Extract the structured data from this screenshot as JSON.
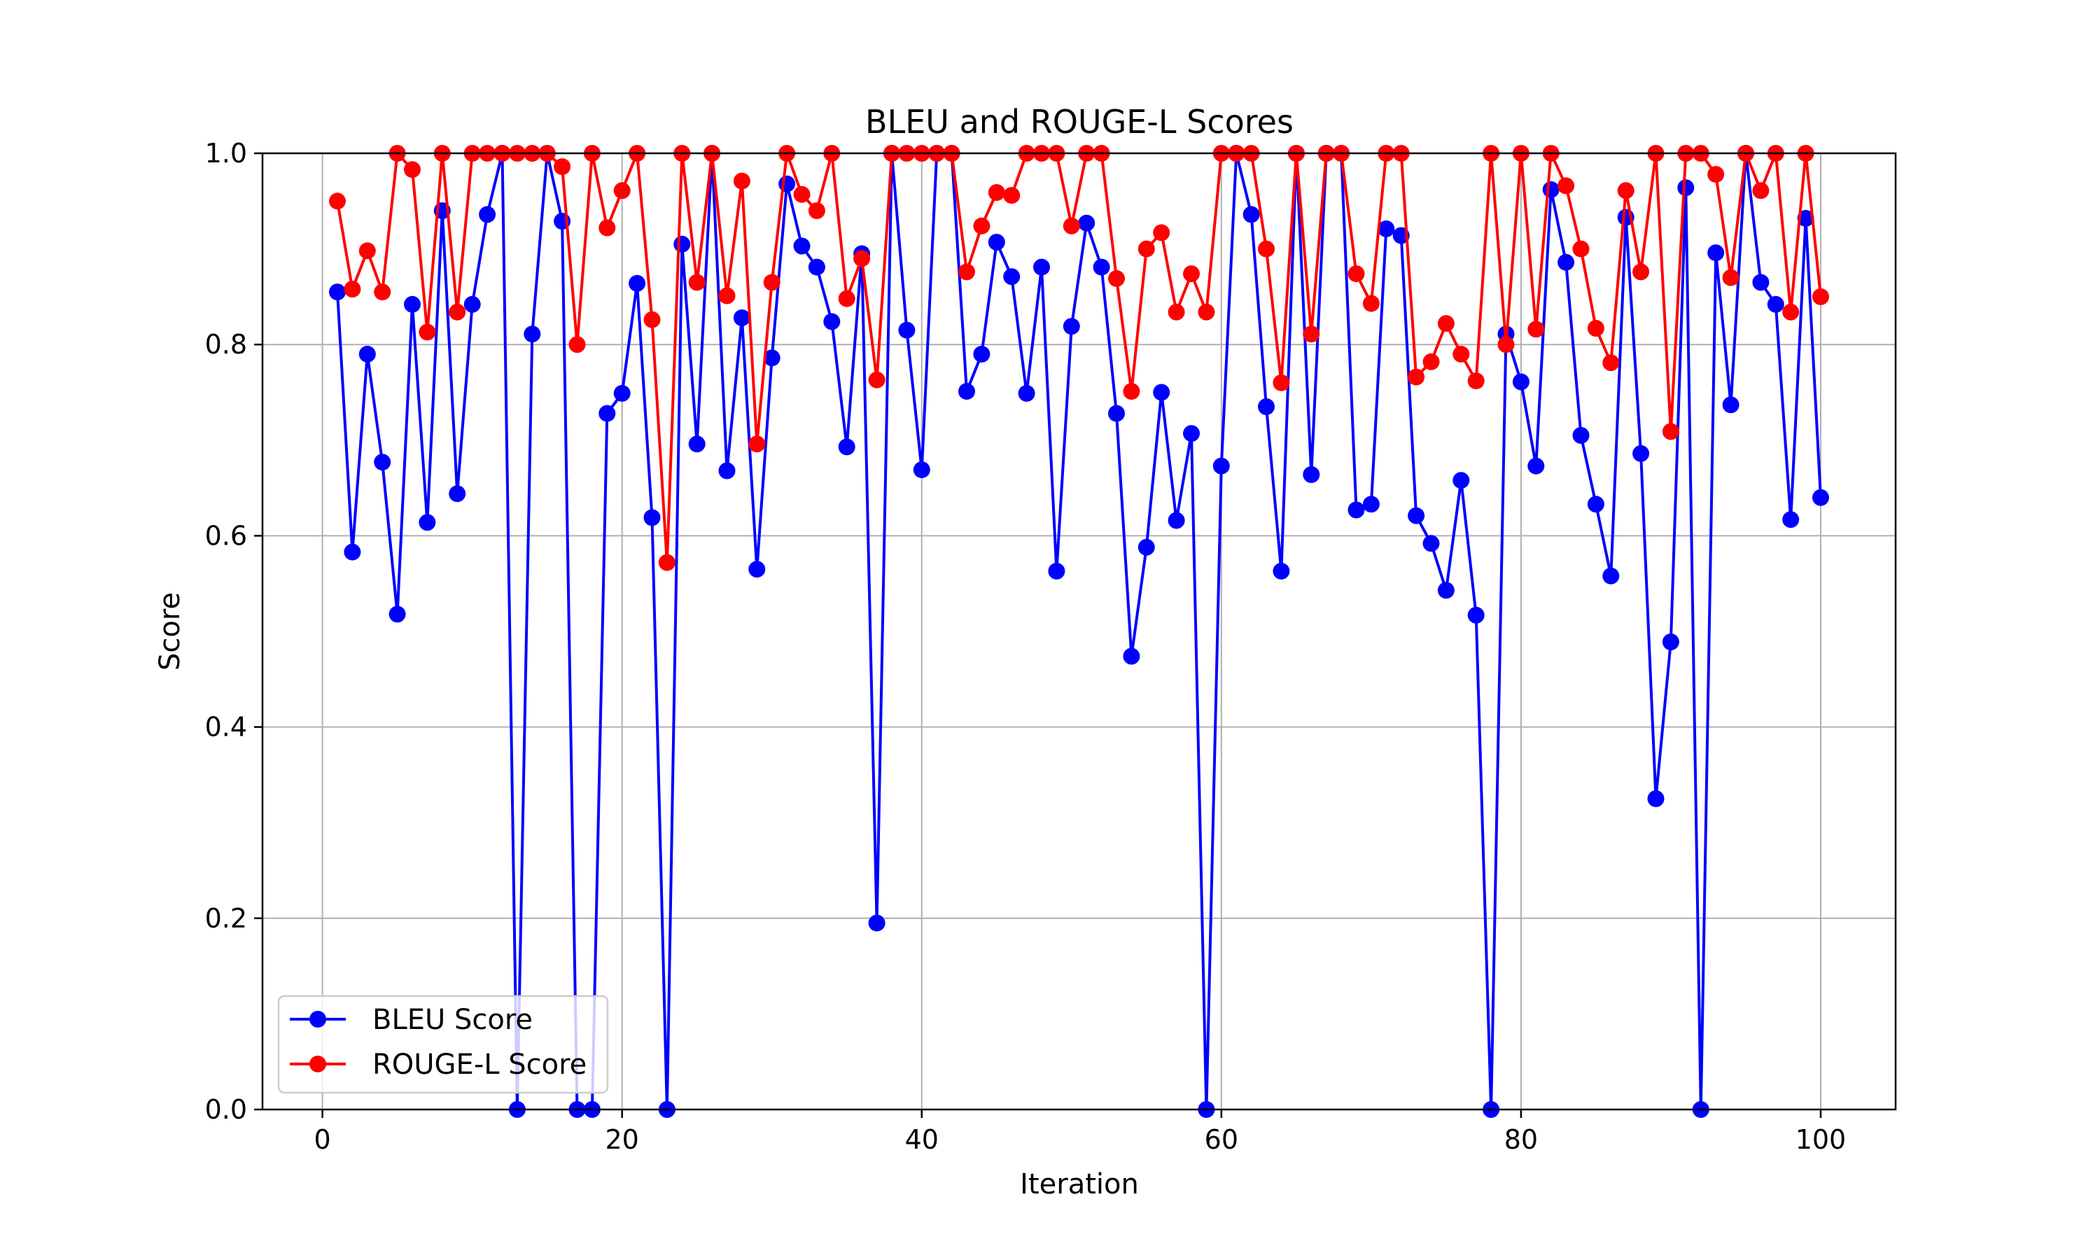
{
  "chart_data": {
    "type": "line",
    "title": "BLEU and ROUGE-L Scores",
    "xlabel": "Iteration",
    "ylabel": "Score",
    "xlim": [
      -4,
      105
    ],
    "ylim": [
      0,
      1
    ],
    "xticks": [
      0,
      20,
      40,
      60,
      80,
      100
    ],
    "xtick_labels": [
      "0",
      "20",
      "40",
      "60",
      "80",
      "100"
    ],
    "yticks": [
      0,
      0.2,
      0.4,
      0.6,
      0.8,
      1
    ],
    "ytick_labels": [
      "0.0",
      "0.2",
      "0.4",
      "0.6",
      "0.8",
      "1.0"
    ],
    "grid": true,
    "legend_position": "lower-left",
    "x": [
      1,
      2,
      3,
      4,
      5,
      6,
      7,
      8,
      9,
      10,
      11,
      12,
      13,
      14,
      15,
      16,
      17,
      18,
      19,
      20,
      21,
      22,
      23,
      24,
      25,
      26,
      27,
      28,
      29,
      30,
      31,
      32,
      33,
      34,
      35,
      36,
      37,
      38,
      39,
      40,
      41,
      42,
      43,
      44,
      45,
      46,
      47,
      48,
      49,
      50,
      51,
      52,
      53,
      54,
      55,
      56,
      57,
      58,
      59,
      60,
      61,
      62,
      63,
      64,
      65,
      66,
      67,
      68,
      69,
      70,
      71,
      72,
      73,
      74,
      75,
      76,
      77,
      78,
      79,
      80,
      81,
      82,
      83,
      84,
      85,
      86,
      87,
      88,
      89,
      90,
      91,
      92,
      93,
      94,
      95,
      96,
      97,
      98,
      99,
      100
    ],
    "series": [
      {
        "name": "BLEU Score",
        "color": "#0000ff",
        "values": [
          0.855,
          0.583,
          0.79,
          0.677,
          0.518,
          0.842,
          0.614,
          0.94,
          0.644,
          0.842,
          0.936,
          1.0,
          0.0,
          0.811,
          1.0,
          0.929,
          0.0,
          0.0,
          0.728,
          0.749,
          0.864,
          0.619,
          0.0,
          0.905,
          0.696,
          1.0,
          0.668,
          0.828,
          0.565,
          0.786,
          0.968,
          0.903,
          0.881,
          0.824,
          0.693,
          0.895,
          0.195,
          1.0,
          0.815,
          0.669,
          1.0,
          1.0,
          0.751,
          0.79,
          0.907,
          0.871,
          0.749,
          0.881,
          0.563,
          0.819,
          0.927,
          0.881,
          0.728,
          0.474,
          0.588,
          0.75,
          0.616,
          0.707,
          0.0,
          0.673,
          1.0,
          0.936,
          0.735,
          0.563,
          1.0,
          0.664,
          1.0,
          1.0,
          0.627,
          0.633,
          0.921,
          0.914,
          0.621,
          0.592,
          0.543,
          0.658,
          0.517,
          0.0,
          0.811,
          0.761,
          0.673,
          0.962,
          0.886,
          0.705,
          0.633,
          0.558,
          0.933,
          0.686,
          0.325,
          0.489,
          0.964,
          0.0,
          0.896,
          0.737,
          1.0,
          0.865,
          0.842,
          0.617,
          0.932,
          0.64
        ]
      },
      {
        "name": "ROUGE-L Score",
        "color": "#ff0000",
        "values": [
          0.95,
          0.858,
          0.898,
          0.855,
          1.0,
          0.983,
          0.813,
          1.0,
          0.834,
          1.0,
          1.0,
          1.0,
          1.0,
          1.0,
          1.0,
          0.986,
          0.8,
          1.0,
          0.922,
          0.961,
          1.0,
          0.826,
          0.572,
          1.0,
          0.865,
          1.0,
          0.851,
          0.971,
          0.696,
          0.865,
          1.0,
          0.957,
          0.94,
          1.0,
          0.848,
          0.89,
          0.763,
          1.0,
          1.0,
          1.0,
          1.0,
          1.0,
          0.876,
          0.924,
          0.959,
          0.956,
          1.0,
          1.0,
          1.0,
          0.924,
          1.0,
          1.0,
          0.869,
          0.751,
          0.9,
          0.917,
          0.834,
          0.874,
          0.834,
          1.0,
          1.0,
          1.0,
          0.9,
          0.76,
          1.0,
          0.811,
          1.0,
          1.0,
          0.874,
          0.843,
          1.0,
          1.0,
          0.766,
          0.782,
          0.822,
          0.79,
          0.762,
          1.0,
          0.8,
          1.0,
          0.816,
          1.0,
          0.966,
          0.9,
          0.817,
          0.781,
          0.961,
          0.876,
          1.0,
          0.709,
          1.0,
          1.0,
          0.978,
          0.87,
          1.0,
          0.961,
          1.0,
          0.834,
          1.0,
          0.85
        ]
      }
    ]
  }
}
